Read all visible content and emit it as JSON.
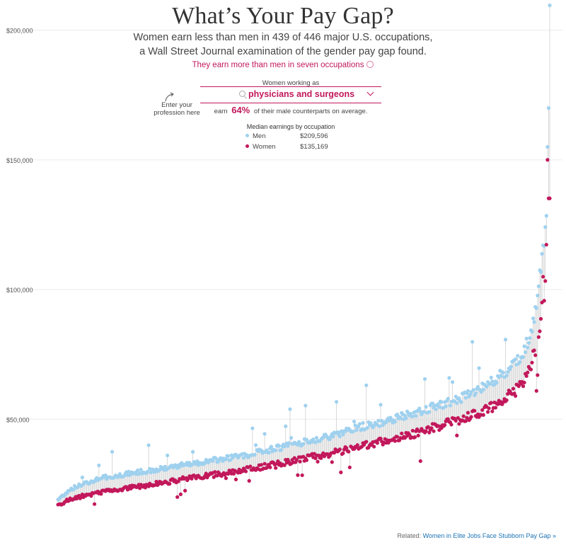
{
  "header": {
    "title": "What’s Your Pay Gap?",
    "subtitle_line1": "Women earn less than men in 439 of 446 major U.S. occupations,",
    "subtitle_line2": "a Wall Street Journal examination of the gender pay gap found.",
    "exception_link": "They earn more than men in seven occupations"
  },
  "selector": {
    "label": "Women working as",
    "value": "physicians and surgeons",
    "hint": "Enter your profession here"
  },
  "summary": {
    "earn_prefix": "earn",
    "percent": "64%",
    "earn_suffix": "of their male counterparts on average."
  },
  "legend": {
    "title": "Median earnings by occupation",
    "men_label": "Men",
    "men_value": "$209,596",
    "women_label": "Women",
    "women_value": "$135,169"
  },
  "related": {
    "prefix": "Related:",
    "link_text": "Women in Elite Jobs Face Stubborn Pay Gap »"
  },
  "colors": {
    "men": "#9fd1ef",
    "women": "#c2185b",
    "stem": "#cfcfcf",
    "grid": "#ececec"
  },
  "chart_data": {
    "type": "scatter",
    "title": "What’s Your Pay Gap?",
    "n_occupations": 446,
    "y_ticks": [
      "$50,000",
      "$100,000",
      "$150,000",
      "$200,000"
    ],
    "y_tick_values": [
      50000,
      100000,
      150000,
      200000
    ],
    "ylim": [
      10000,
      210000
    ],
    "series": [
      {
        "name": "Men",
        "color": "#9fd1ef"
      },
      {
        "name": "Women",
        "color": "#c2185b"
      }
    ],
    "x_index": [
      1,
      12,
      24,
      36,
      50,
      65,
      80,
      95,
      110,
      125,
      140,
      155,
      170,
      185,
      200,
      215,
      230,
      245,
      260,
      275,
      290,
      305,
      320,
      335,
      350,
      365,
      380,
      395,
      405,
      415,
      422,
      428,
      432,
      435,
      438,
      440,
      442,
      443,
      444,
      445,
      446
    ],
    "men_values": [
      19000,
      23000,
      25000,
      27000,
      28000,
      29000,
      30000,
      31000,
      32000,
      33000,
      34000,
      35000,
      36000,
      37500,
      39000,
      40000,
      42000,
      43000,
      45000,
      47000,
      48500,
      50000,
      52000,
      54000,
      56000,
      58000,
      61000,
      65000,
      68000,
      72000,
      76000,
      82000,
      88000,
      96000,
      110000,
      115000,
      122000,
      130000,
      155000,
      170000,
      209596
    ],
    "women_values": [
      17000,
      19000,
      20500,
      21500,
      22500,
      23500,
      24500,
      25500,
      26500,
      27500,
      28500,
      29500,
      30500,
      31500,
      33000,
      34000,
      35500,
      36500,
      38000,
      40000,
      41000,
      42500,
      44000,
      46000,
      48000,
      50000,
      52000,
      55000,
      58000,
      61000,
      65000,
      70000,
      76000,
      80000,
      90000,
      102000,
      103000,
      118000,
      150000,
      135169,
      135169
    ]
  }
}
